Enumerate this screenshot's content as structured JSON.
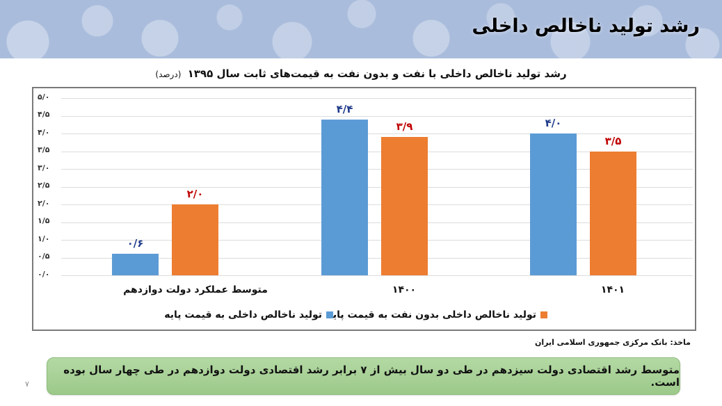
{
  "header": {
    "title": "رشد تولید ناخالص داخلی"
  },
  "chart": {
    "title": "رشد تولید ناخالص داخلی با نفت و بدون نفت به قیمت‌های ثابت سال ۱۳۹۵",
    "unit": "(درصد)",
    "y_ticks": [
      "۵/۰",
      "۴/۵",
      "۴/۰",
      "۳/۵",
      "۳/۰",
      "۲/۵",
      "۲/۰",
      "۱/۵",
      "۱/۰",
      "۰/۵",
      "۰/۰"
    ],
    "categories": [
      "متوسط عملکرد دولت دوازدهم",
      "۱۴۰۰",
      "۱۴۰۱"
    ],
    "bar_labels": {
      "blue": [
        "۰/۶",
        "۴/۴",
        "۴/۰"
      ],
      "orange": [
        "۲/۰",
        "۳/۹",
        "۳/۵"
      ]
    },
    "legend": {
      "orange": "تولید ناخالص داخلی بدون نفت به قیمت پایه",
      "blue": "تولید ناخالص داخلی به قیمت پایه"
    },
    "colors": {
      "blue": "#5b9bd5",
      "orange": "#ed7d31",
      "blue_label": "#1f3a8a",
      "orange_label": "#c00000"
    }
  },
  "source": "ماخذ: بانک مرکزی جمهوری اسلامی ایران",
  "callout": "متوسط رشد اقتصادی دولت سیزدهم در طی دو سال بیش از ۷ برابر رشد اقتصادی دولت دوازدهم در طی چهار سال بوده است.",
  "page_number": "۷",
  "chart_data": {
    "type": "bar",
    "title": "رشد تولید ناخالص داخلی با نفت و بدون نفت به قیمت‌های ثابت سال ۱۳۹۵ (درصد)",
    "categories": [
      "متوسط عملکرد دولت دوازدهم",
      "1400",
      "1401"
    ],
    "series": [
      {
        "name": "تولید ناخالص داخلی به قیمت پایه",
        "color": "#5b9bd5",
        "values": [
          0.6,
          4.4,
          4.0
        ]
      },
      {
        "name": "تولید ناخالص داخلی بدون نفت به قیمت پایه",
        "color": "#ed7d31",
        "values": [
          2.0,
          3.9,
          3.5
        ]
      }
    ],
    "xlabel": "",
    "ylabel": "درصد",
    "ylim": [
      0,
      5
    ],
    "y_tick_step": 0.5,
    "grid": true,
    "legend_position": "bottom",
    "data_labels": true
  }
}
